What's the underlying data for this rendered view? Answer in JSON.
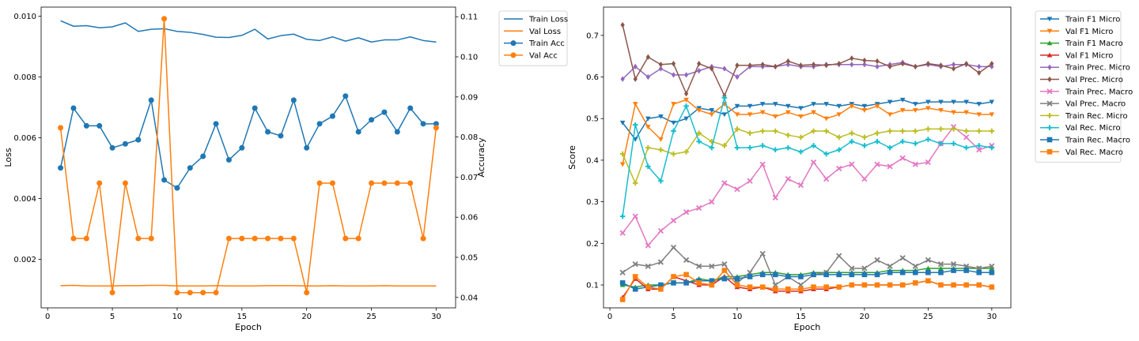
{
  "chart_data": [
    {
      "type": "line",
      "xlabel": "Epoch",
      "ylabel": "Loss",
      "y2label": "Accuracy",
      "xlim": [
        -0.5,
        31.5
      ],
      "ylim": [
        0.0004,
        0.0103
      ],
      "y2lim": [
        0.0374,
        0.1124
      ],
      "x_ticks": [
        0,
        5,
        10,
        15,
        20,
        25,
        30
      ],
      "y_ticks": [
        0.002,
        0.004,
        0.006,
        0.008,
        0.01
      ],
      "y_tick_labels": [
        "0.002",
        "0.004",
        "0.006",
        "0.008",
        "0.010"
      ],
      "y2_ticks": [
        0.04,
        0.05,
        0.06,
        0.07,
        0.08,
        0.09,
        0.1,
        0.11
      ],
      "y2_tick_labels": [
        "0.04",
        "0.05",
        "0.06",
        "0.07",
        "0.08",
        "0.09",
        "0.10",
        "0.11"
      ],
      "legend_position": "outside-right",
      "x": [
        1,
        2,
        3,
        4,
        5,
        6,
        7,
        8,
        9,
        10,
        11,
        12,
        13,
        14,
        15,
        16,
        17,
        18,
        19,
        20,
        21,
        22,
        23,
        24,
        25,
        26,
        27,
        28,
        29,
        30
      ],
      "series": [
        {
          "name": "Train Loss",
          "axis": "left",
          "color": "#1f77b4",
          "marker": "none",
          "values": [
            0.00985,
            0.00967,
            0.00969,
            0.00962,
            0.00965,
            0.00978,
            0.0095,
            0.00957,
            0.00959,
            0.0095,
            0.00947,
            0.0094,
            0.00931,
            0.0093,
            0.00937,
            0.00957,
            0.00925,
            0.00936,
            0.00941,
            0.00924,
            0.0092,
            0.00932,
            0.00918,
            0.00929,
            0.00915,
            0.00922,
            0.00922,
            0.00932,
            0.0092,
            0.00915
          ]
        },
        {
          "name": "Val Loss",
          "axis": "left",
          "color": "#ff7f0e",
          "marker": "none",
          "values": [
            0.00113,
            0.00114,
            0.00112,
            0.00112,
            0.00112,
            0.00113,
            0.00113,
            0.00114,
            0.00114,
            0.00112,
            0.00112,
            0.00112,
            0.00113,
            0.00112,
            0.00112,
            0.00112,
            0.00113,
            0.00113,
            0.00113,
            0.00112,
            0.00112,
            0.00113,
            0.00112,
            0.00112,
            0.00112,
            0.00113,
            0.00112,
            0.00112,
            0.00112,
            0.00112
          ]
        },
        {
          "name": "Train Acc",
          "axis": "right",
          "color": "#1f77b4",
          "marker": "circle",
          "values": [
            0.0723,
            0.0872,
            0.0828,
            0.0828,
            0.0773,
            0.0783,
            0.0793,
            0.0892,
            0.0693,
            0.0673,
            0.0723,
            0.0752,
            0.0833,
            0.0743,
            0.0773,
            0.0872,
            0.0813,
            0.0803,
            0.0892,
            0.0773,
            0.0833,
            0.0852,
            0.0902,
            0.0813,
            0.0843,
            0.0862,
            0.0813,
            0.0872,
            0.0833,
            0.0833
          ]
        },
        {
          "name": "Val Acc",
          "axis": "right",
          "color": "#ff7f0e",
          "marker": "circle",
          "values": [
            0.0823,
            0.0547,
            0.0547,
            0.0685,
            0.0412,
            0.0685,
            0.0547,
            0.0547,
            0.1095,
            0.0412,
            0.0412,
            0.0412,
            0.0412,
            0.0547,
            0.0547,
            0.0547,
            0.0547,
            0.0547,
            0.0547,
            0.0412,
            0.0685,
            0.0685,
            0.0547,
            0.0547,
            0.0685,
            0.0685,
            0.0685,
            0.0685,
            0.0547,
            0.0823
          ]
        }
      ]
    },
    {
      "type": "line",
      "xlabel": "Epoch",
      "ylabel": "Score",
      "xlim": [
        -0.5,
        31.5
      ],
      "ylim": [
        0.045,
        0.768
      ],
      "x_ticks": [
        0,
        5,
        10,
        15,
        20,
        25,
        30
      ],
      "y_ticks": [
        0.1,
        0.2,
        0.3,
        0.4,
        0.5,
        0.6,
        0.7
      ],
      "y_tick_labels": [
        "0.1",
        "0.2",
        "0.3",
        "0.4",
        "0.5",
        "0.6",
        "0.7"
      ],
      "legend_position": "outside-right",
      "x": [
        1,
        2,
        3,
        4,
        5,
        6,
        7,
        8,
        9,
        10,
        11,
        12,
        13,
        14,
        15,
        16,
        17,
        18,
        19,
        20,
        21,
        22,
        23,
        24,
        25,
        26,
        27,
        28,
        29,
        30
      ],
      "series": [
        {
          "name": "Train F1 Micro",
          "color": "#1f77b4",
          "marker": "triangle-down",
          "values": [
            0.49,
            0.45,
            0.5,
            0.505,
            0.49,
            0.5,
            0.525,
            0.52,
            0.51,
            0.53,
            0.53,
            0.535,
            0.535,
            0.53,
            0.525,
            0.535,
            0.535,
            0.53,
            0.535,
            0.53,
            0.535,
            0.54,
            0.545,
            0.535,
            0.54,
            0.54,
            0.54,
            0.54,
            0.535,
            0.54
          ]
        },
        {
          "name": "Val F1 Micro",
          "color": "#ff7f0e",
          "marker": "triangle-down",
          "values": [
            0.39,
            0.535,
            0.48,
            0.45,
            0.535,
            0.545,
            0.52,
            0.51,
            0.535,
            0.51,
            0.51,
            0.515,
            0.505,
            0.515,
            0.505,
            0.515,
            0.5,
            0.51,
            0.53,
            0.52,
            0.53,
            0.51,
            0.52,
            0.52,
            0.525,
            0.52,
            0.515,
            0.515,
            0.51,
            0.51
          ]
        },
        {
          "name": "Train F1 Macro",
          "color": "#2ca02c",
          "marker": "triangle-up",
          "values": [
            0.1,
            0.095,
            0.1,
            0.1,
            0.105,
            0.105,
            0.115,
            0.11,
            0.12,
            0.12,
            0.125,
            0.13,
            0.13,
            0.125,
            0.125,
            0.13,
            0.13,
            0.13,
            0.13,
            0.13,
            0.13,
            0.135,
            0.135,
            0.135,
            0.14,
            0.14,
            0.14,
            0.14,
            0.14,
            0.14
          ]
        },
        {
          "name": "Val F1 Micro",
          "color": "#d62728",
          "marker": "triangle-up",
          "values": [
            0.07,
            0.115,
            0.09,
            0.09,
            0.12,
            0.11,
            0.1,
            0.1,
            0.12,
            0.095,
            0.09,
            0.095,
            0.085,
            0.085,
            0.085,
            0.09,
            0.09,
            0.095,
            0.1,
            0.1,
            0.1,
            0.1,
            0.1,
            0.105,
            0.11,
            0.1,
            0.1,
            0.1,
            0.1,
            0.095
          ]
        },
        {
          "name": "Train Prec. Micro",
          "color": "#9467bd",
          "marker": "diamond",
          "values": [
            0.595,
            0.625,
            0.6,
            0.62,
            0.605,
            0.605,
            0.615,
            0.625,
            0.62,
            0.6,
            0.625,
            0.625,
            0.625,
            0.63,
            0.625,
            0.625,
            0.63,
            0.63,
            0.63,
            0.63,
            0.625,
            0.63,
            0.635,
            0.625,
            0.63,
            0.625,
            0.63,
            0.63,
            0.625,
            0.625
          ]
        },
        {
          "name": "Val Prec. Micro",
          "color": "#8c564b",
          "marker": "diamond",
          "values": [
            0.725,
            0.595,
            0.648,
            0.63,
            0.632,
            0.56,
            0.632,
            0.62,
            0.555,
            0.628,
            0.628,
            0.63,
            0.625,
            0.638,
            0.628,
            0.63,
            0.628,
            0.632,
            0.645,
            0.64,
            0.638,
            0.625,
            0.632,
            0.625,
            0.632,
            0.628,
            0.62,
            0.632,
            0.61,
            0.632
          ]
        },
        {
          "name": "Train Prec. Macro",
          "color": "#e377c2",
          "marker": "x",
          "values": [
            0.225,
            0.265,
            0.195,
            0.23,
            0.255,
            0.275,
            0.285,
            0.3,
            0.345,
            0.33,
            0.35,
            0.39,
            0.31,
            0.355,
            0.34,
            0.395,
            0.355,
            0.38,
            0.39,
            0.355,
            0.39,
            0.385,
            0.405,
            0.39,
            0.395,
            0.44,
            0.48,
            0.455,
            0.425,
            0.435
          ]
        },
        {
          "name": "Val Prec. Macro",
          "color": "#7f7f7f",
          "marker": "x",
          "values": [
            0.13,
            0.15,
            0.145,
            0.155,
            0.19,
            0.16,
            0.145,
            0.145,
            0.15,
            0.105,
            0.13,
            0.175,
            0.1,
            0.12,
            0.1,
            0.125,
            0.13,
            0.17,
            0.14,
            0.14,
            0.16,
            0.145,
            0.165,
            0.145,
            0.16,
            0.15,
            0.15,
            0.145,
            0.14,
            0.145
          ]
        },
        {
          "name": "Train Rec. Micro",
          "color": "#bcbd22",
          "marker": "plus",
          "values": [
            0.415,
            0.345,
            0.43,
            0.425,
            0.415,
            0.42,
            0.465,
            0.445,
            0.435,
            0.475,
            0.465,
            0.47,
            0.47,
            0.46,
            0.455,
            0.47,
            0.47,
            0.455,
            0.465,
            0.455,
            0.465,
            0.47,
            0.47,
            0.47,
            0.475,
            0.475,
            0.475,
            0.47,
            0.47,
            0.47
          ]
        },
        {
          "name": "Val Rec. Micro",
          "color": "#17becf",
          "marker": "plus",
          "values": [
            0.265,
            0.485,
            0.385,
            0.35,
            0.47,
            0.53,
            0.445,
            0.43,
            0.55,
            0.43,
            0.43,
            0.435,
            0.425,
            0.43,
            0.42,
            0.435,
            0.415,
            0.425,
            0.445,
            0.435,
            0.445,
            0.43,
            0.445,
            0.44,
            0.45,
            0.44,
            0.44,
            0.43,
            0.435,
            0.43
          ]
        },
        {
          "name": "Train Rec. Macro",
          "color": "#1f77b4",
          "marker": "square",
          "values": [
            0.105,
            0.09,
            0.095,
            0.1,
            0.105,
            0.105,
            0.11,
            0.11,
            0.115,
            0.115,
            0.12,
            0.125,
            0.125,
            0.12,
            0.12,
            0.125,
            0.125,
            0.125,
            0.125,
            0.125,
            0.125,
            0.13,
            0.13,
            0.13,
            0.13,
            0.13,
            0.135,
            0.135,
            0.13,
            0.13
          ]
        },
        {
          "name": "Val Rec. Macro",
          "color": "#ff7f0e",
          "marker": "square",
          "values": [
            0.065,
            0.12,
            0.095,
            0.09,
            0.12,
            0.125,
            0.105,
            0.1,
            0.135,
            0.1,
            0.095,
            0.095,
            0.09,
            0.09,
            0.09,
            0.095,
            0.095,
            0.095,
            0.1,
            0.1,
            0.1,
            0.1,
            0.1,
            0.105,
            0.11,
            0.1,
            0.1,
            0.1,
            0.1,
            0.095
          ]
        }
      ]
    }
  ]
}
